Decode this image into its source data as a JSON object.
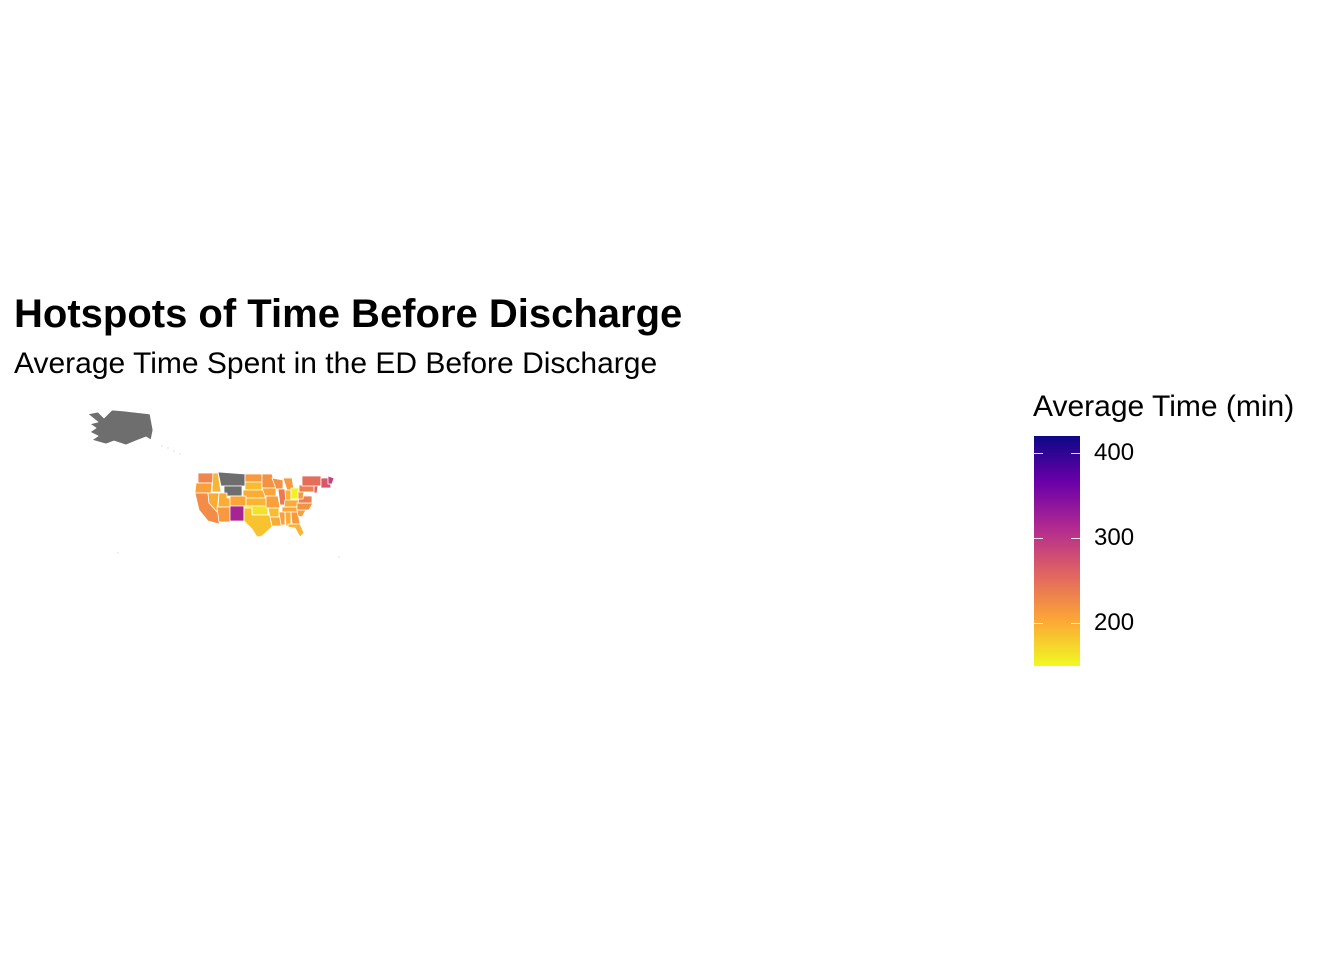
{
  "title": "Hotspots of Time Before Discharge",
  "subtitle": "Average Time Spent in the ED Before Discharge",
  "colors": {
    "no_data": "#6e6e6e",
    "border": "#ffffff",
    "scale_stops": [
      "#F0F921",
      "#FCA636",
      "#E16462",
      "#B12A90",
      "#6A00A8",
      "#0D0887"
    ]
  },
  "legend": {
    "title": "Average Time (min)",
    "min": 150,
    "max": 420,
    "ticks": [
      {
        "value": 400,
        "label": "400"
      },
      {
        "value": 300,
        "label": "300"
      },
      {
        "value": 200,
        "label": "200"
      }
    ]
  },
  "chart_data": {
    "type": "choropleth",
    "title": "Hotspots of Time Before Discharge",
    "subtitle": "Average Time Spent in the ED Before Discharge",
    "value_label": "Average Time (min)",
    "range": [
      150,
      420
    ],
    "regions": [
      {
        "state": "Alaska",
        "value": null
      },
      {
        "state": "Washington",
        "value": 230
      },
      {
        "state": "Oregon",
        "value": 210
      },
      {
        "state": "California",
        "value": 225
      },
      {
        "state": "Nevada",
        "value": 200
      },
      {
        "state": "Idaho",
        "value": 195
      },
      {
        "state": "Montana",
        "value": null
      },
      {
        "state": "Wyoming",
        "value": null
      },
      {
        "state": "Utah",
        "value": 200
      },
      {
        "state": "Arizona",
        "value": 215
      },
      {
        "state": "Colorado",
        "value": 205
      },
      {
        "state": "New Mexico",
        "value": 320
      },
      {
        "state": "North Dakota",
        "value": 215
      },
      {
        "state": "South Dakota",
        "value": 190
      },
      {
        "state": "Nebraska",
        "value": 200
      },
      {
        "state": "Kansas",
        "value": 195
      },
      {
        "state": "Oklahoma",
        "value": 165
      },
      {
        "state": "Texas",
        "value": 185
      },
      {
        "state": "Minnesota",
        "value": 220
      },
      {
        "state": "Iowa",
        "value": 205
      },
      {
        "state": "Missouri",
        "value": 210
      },
      {
        "state": "Arkansas",
        "value": 190
      },
      {
        "state": "Louisiana",
        "value": 200
      },
      {
        "state": "Wisconsin",
        "value": 220
      },
      {
        "state": "Illinois",
        "value": 240
      },
      {
        "state": "Michigan",
        "value": 215
      },
      {
        "state": "Indiana",
        "value": 195
      },
      {
        "state": "Ohio",
        "value": 155
      },
      {
        "state": "Kentucky",
        "value": 200
      },
      {
        "state": "Tennessee",
        "value": 205
      },
      {
        "state": "Mississippi",
        "value": 210
      },
      {
        "state": "Alabama",
        "value": 200
      },
      {
        "state": "Georgia",
        "value": 215
      },
      {
        "state": "Florida",
        "value": 195
      },
      {
        "state": "South Carolina",
        "value": 210
      },
      {
        "state": "North Carolina",
        "value": 220
      },
      {
        "state": "Virginia",
        "value": 235
      },
      {
        "state": "West Virginia",
        "value": 215
      },
      {
        "state": "Pennsylvania",
        "value": 235
      },
      {
        "state": "New York",
        "value": 250
      },
      {
        "state": "New Jersey",
        "value": 260
      },
      {
        "state": "New England",
        "value": 270
      },
      {
        "state": "Maine",
        "value": 290
      }
    ]
  }
}
